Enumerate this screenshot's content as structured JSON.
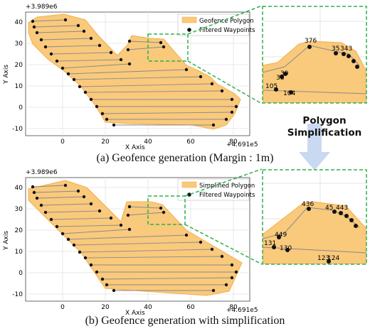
{
  "figure": {
    "caption_a": "(a) Geofence generation (Margin : 1m)",
    "caption_b": "(b) Geofence generation with simplification",
    "arrow_label_line1": "Polygon",
    "arrow_label_line2": "Simplification"
  },
  "colors": {
    "polygon_fill": "#f9c97c",
    "polygon_edge": "#f2b04a",
    "zoom_box": "#2fb04a",
    "waypoint": "#111111",
    "path_line": "#8a8a8a",
    "arrow": "#c9d9f2"
  },
  "panels": [
    {
      "id": "a",
      "y_offset_label": "+3.989e6",
      "x_offset_label": "+4.691e5",
      "x_axis_label": "X Axis",
      "y_axis_label": "Y Axis",
      "x_ticks": [
        "0",
        "20",
        "40",
        "60",
        "80"
      ],
      "y_ticks": [
        "40",
        "30",
        "20",
        "10",
        "0",
        "-10"
      ],
      "legend": [
        "Geofence Polygon",
        "Filtered Waypoints"
      ],
      "zoom_labels": [
        {
          "text": "376"
        },
        {
          "text": "35"
        },
        {
          "text": "343"
        },
        {
          "text": "38"
        },
        {
          "text": "39"
        },
        {
          "text": "105"
        },
        {
          "text": "104"
        }
      ]
    },
    {
      "id": "b",
      "y_offset_label": "+3.989e6",
      "x_offset_label": "+4.691e5",
      "x_axis_label": "X Axis",
      "y_axis_label": "Y Axis",
      "x_ticks": [
        "0",
        "20",
        "40",
        "60",
        "80"
      ],
      "y_ticks": [
        "40",
        "30",
        "20",
        "10",
        "0",
        "-10"
      ],
      "legend": [
        "Simplified Polygon",
        "Filtered Waypoints"
      ],
      "zoom_labels": [
        {
          "text": "436"
        },
        {
          "text": "45"
        },
        {
          "text": "443"
        },
        {
          "text": "449"
        },
        {
          "text": "131"
        },
        {
          "text": "130"
        },
        {
          "text": "123"
        },
        {
          "text": "124"
        }
      ]
    }
  ]
}
